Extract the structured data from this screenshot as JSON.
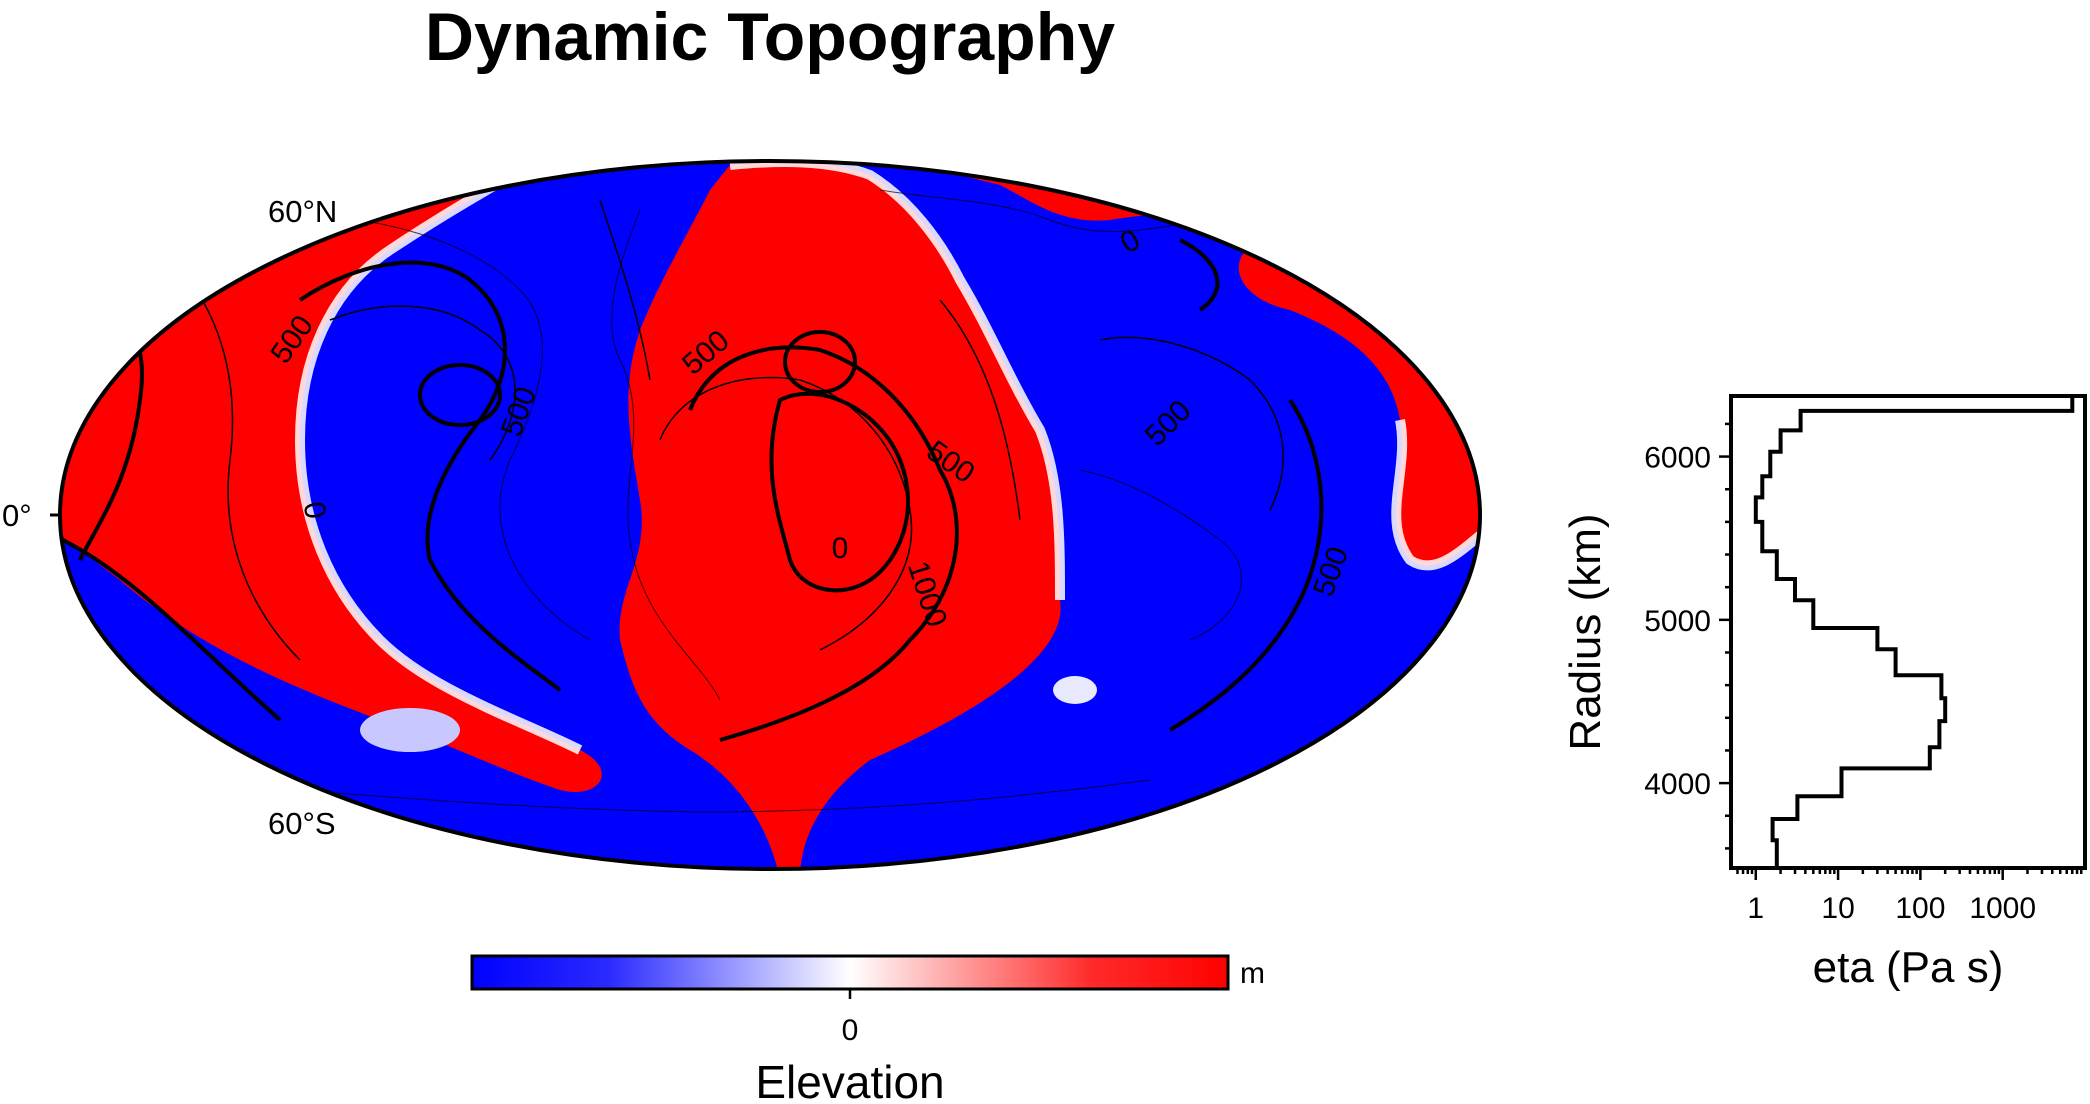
{
  "title": "Dynamic Topography",
  "map": {
    "latitude_labels": [
      "60°N",
      "0°",
      "60°S"
    ],
    "contour_labels": [
      "0",
      "0",
      "0",
      "500",
      "500",
      "500",
      "500",
      "500",
      "500",
      "1000"
    ]
  },
  "colorbar": {
    "label": "Elevation",
    "unit": "m",
    "ticks": [
      "0"
    ],
    "colors": {
      "low": "#0000ff",
      "mid": "#ffffff",
      "high": "#ff0000"
    }
  },
  "chart_data": [
    {
      "type": "heatmap",
      "title": "Dynamic Topography",
      "projection": "Hammer-Aitoff (global)",
      "colorbar_label": "Elevation",
      "colorbar_unit": "m",
      "colorbar_ticks": [
        0
      ],
      "colors": {
        "negative": "#0000ff",
        "zero": "#ffffff",
        "positive": "#ff0000"
      },
      "contour_levels_labeled": [
        0,
        500,
        1000
      ],
      "lat_ticks": [
        "60°N",
        "0°",
        "60°S"
      ]
    },
    {
      "type": "line",
      "title": "",
      "xlabel": "eta (Pa s)",
      "ylabel": "Radius (km)",
      "xscale": "log",
      "xlim": [
        0.5,
        10000
      ],
      "ylim": [
        3480,
        6371
      ],
      "x_ticks": [
        1,
        10,
        100,
        1000
      ],
      "x_tick_labels": [
        "1",
        "10",
        "100",
        "1000"
      ],
      "y_ticks": [
        4000,
        5000,
        6000
      ],
      "y_tick_labels": [
        "4000",
        "5000",
        "6000"
      ],
      "series": [
        {
          "style": "step",
          "x": [
            1.8,
            1.6,
            3.2,
            11,
            130,
            170,
            200,
            180,
            50,
            30,
            5,
            3,
            1.8,
            1.2,
            1.0,
            1.2,
            1.5,
            2.0,
            3.5,
            7000
          ],
          "y": [
            3480,
            3650,
            3780,
            3920,
            4090,
            4220,
            4380,
            4520,
            4660,
            4820,
            4950,
            5120,
            5250,
            5420,
            5600,
            5750,
            5880,
            6030,
            6160,
            6280
          ]
        }
      ]
    }
  ]
}
